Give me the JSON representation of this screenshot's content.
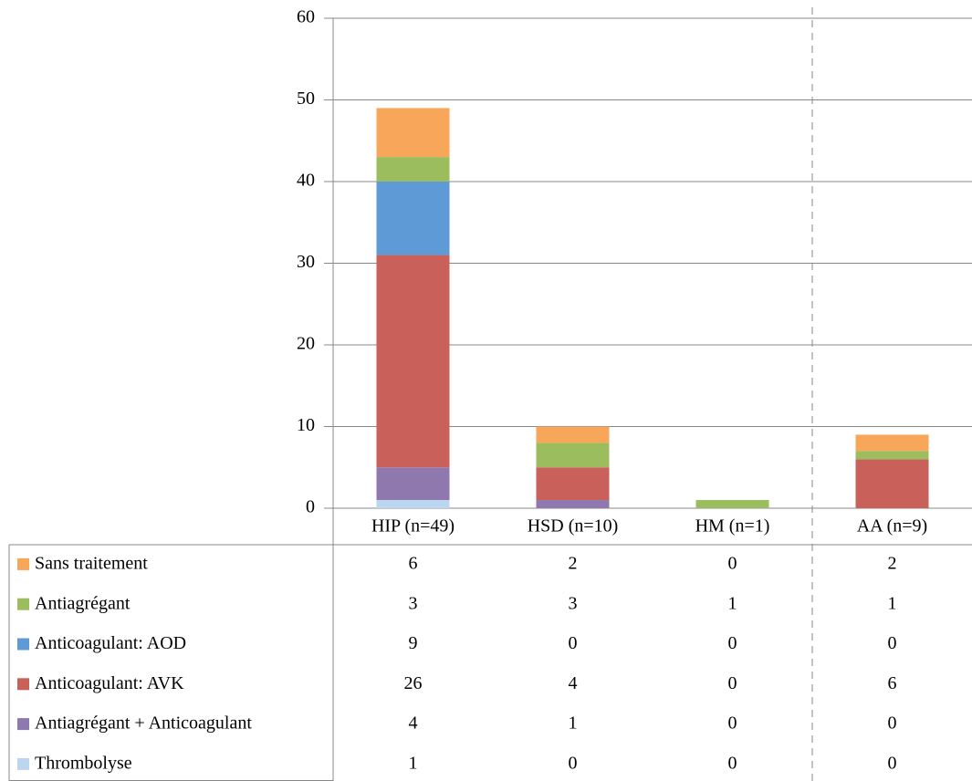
{
  "chart_data": {
    "type": "stacked_bar",
    "categories": [
      "HIP (n=49)",
      "HSD (n=10)",
      "HM (n=1)",
      "AA (n=9)"
    ],
    "series": [
      {
        "name": "Sans traitement",
        "color": "#f8a65a",
        "values": [
          6,
          2,
          0,
          2
        ]
      },
      {
        "name": "Antiagrégant",
        "color": "#9bbd5d",
        "values": [
          3,
          3,
          1,
          1
        ]
      },
      {
        "name": "Anticoagulant: AOD",
        "color": "#5e9ad6",
        "values": [
          9,
          0,
          0,
          0
        ]
      },
      {
        "name": "Anticoagulant: AVK",
        "color": "#c9605a",
        "values": [
          26,
          4,
          0,
          6
        ]
      },
      {
        "name": "Antiagrégant + Anticoagulant",
        "color": "#8f78ae",
        "values": [
          4,
          1,
          0,
          0
        ]
      },
      {
        "name": "Thrombolyse",
        "color": "#bcd5f0",
        "values": [
          1,
          0,
          0,
          0
        ]
      }
    ],
    "ylim": [
      0,
      60
    ],
    "yticks": [
      0,
      10,
      20,
      30,
      40,
      50,
      60
    ],
    "grid": true
  }
}
